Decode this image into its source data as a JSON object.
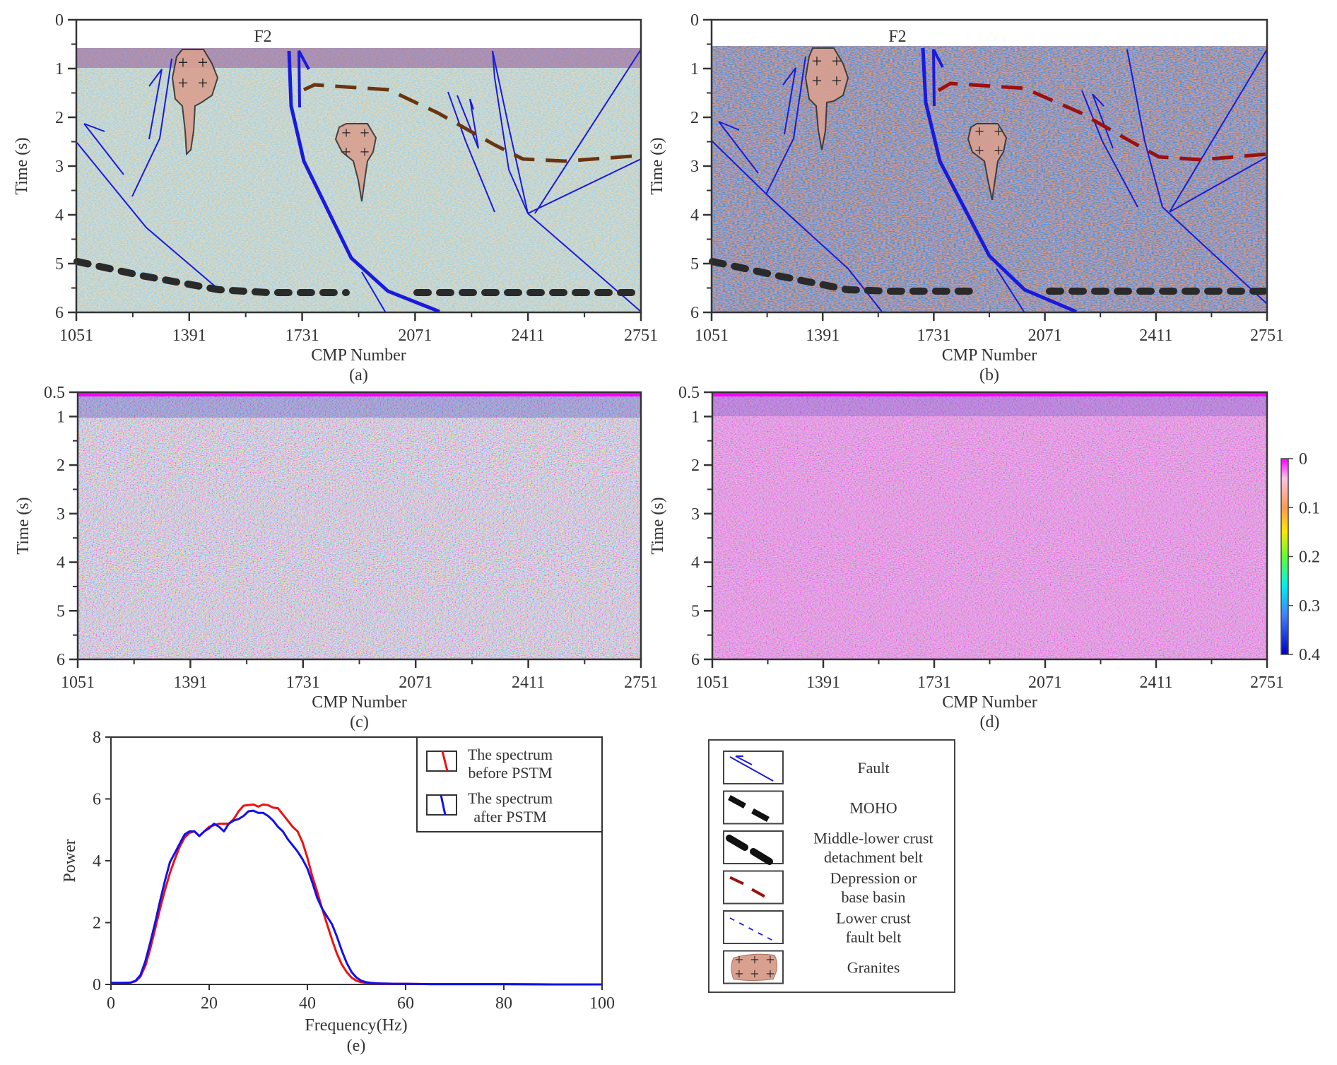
{
  "figure": {
    "panels": [
      {
        "id": "a",
        "caption": "(a)",
        "kind": "seismic-section",
        "variant": "before-PSTM",
        "annotation_label": "F2",
        "xlabel": "CMP Number",
        "ylabel": "Time (s)",
        "xticks": [
          "1051",
          "1391",
          "1731",
          "2071",
          "2411",
          "2751"
        ],
        "yticks": [
          "0",
          "1",
          "2",
          "3",
          "4",
          "5",
          "6"
        ],
        "xlim": [
          1051,
          2751
        ],
        "ylim": [
          0,
          6
        ]
      },
      {
        "id": "b",
        "caption": "(b)",
        "kind": "seismic-section",
        "variant": "after-PSTM",
        "annotation_label": "F2",
        "xlabel": "CMP Number",
        "ylabel": "Time (s)",
        "xticks": [
          "1051",
          "1391",
          "1731",
          "2071",
          "2411",
          "2751"
        ],
        "yticks": [
          "0",
          "1",
          "2",
          "3",
          "4",
          "5",
          "6"
        ],
        "xlim": [
          1051,
          2751
        ],
        "ylim": [
          0,
          6
        ]
      },
      {
        "id": "c",
        "caption": "(c)",
        "kind": "attribute-section",
        "variant": "before-PSTM",
        "xlabel": "CMP Number",
        "ylabel": "Time (s)",
        "xticks": [
          "1051",
          "1391",
          "1731",
          "2071",
          "2411",
          "2751"
        ],
        "yticks": [
          "0.5",
          "1",
          "2",
          "3",
          "4",
          "5",
          "6"
        ],
        "xlim": [
          1051,
          2751
        ],
        "ylim": [
          0.5,
          6
        ]
      },
      {
        "id": "d",
        "caption": "(d)",
        "kind": "attribute-section",
        "variant": "after-PSTM",
        "xlabel": "CMP Number",
        "ylabel": "Time (s)",
        "xticks": [
          "1051",
          "1391",
          "1731",
          "2071",
          "2411",
          "2751"
        ],
        "yticks": [
          "0.5",
          "1",
          "2",
          "3",
          "4",
          "5",
          "6"
        ],
        "xlim": [
          1051,
          2751
        ],
        "ylim": [
          0.5,
          6
        ]
      }
    ],
    "colorbar": {
      "ticks": [
        "0",
        "0.1",
        "0.2",
        "0.3",
        "0.4"
      ],
      "range": [
        0,
        0.4
      ],
      "colors": [
        "#ff00ff",
        "#ffc0e0",
        "#ff9a50",
        "#ffe600",
        "#60ff30",
        "#00f0f0",
        "#4080ff",
        "#0000c0"
      ]
    },
    "interpretation_legend": {
      "items": [
        {
          "symbol": "fault",
          "label_lines": [
            "Fault"
          ],
          "color": "#1a1adc"
        },
        {
          "symbol": "moho",
          "label_lines": [
            "MOHO"
          ],
          "color": "#111111"
        },
        {
          "symbol": "detachment",
          "label_lines": [
            "Middle-lower crust",
            "detachment belt"
          ],
          "color": "#111111"
        },
        {
          "symbol": "depression",
          "label_lines": [
            "Depression or",
            "base basin"
          ],
          "color": "#9b1010"
        },
        {
          "symbol": "lower-crust-fault",
          "label_lines": [
            "Lower crust",
            "fault belt"
          ],
          "color": "#1a1adc"
        },
        {
          "symbol": "granite",
          "label_lines": [
            "Granites"
          ],
          "color": "#d9a090"
        }
      ]
    },
    "colors": {
      "fault": "#1a1adc",
      "moho": "#2a2a2a",
      "basin_a": "#6b3410",
      "basin_b": "#9b1010",
      "granite_fill": "#d9a090",
      "spectrum_before": "#ee1111",
      "spectrum_after": "#1111ee"
    }
  },
  "chart_data": {
    "type": "line",
    "caption": "(e)",
    "title": "",
    "xlabel": "Frequency(Hz)",
    "ylabel": "Power",
    "xlim": [
      0,
      100
    ],
    "ylim": [
      0,
      8
    ],
    "xticks": [
      "0",
      "20",
      "40",
      "60",
      "80",
      "100"
    ],
    "yticks": [
      "0",
      "2",
      "4",
      "6",
      "8"
    ],
    "grid": false,
    "legend_position": "top-right",
    "x": [
      0,
      2,
      4,
      5,
      6,
      7,
      8,
      9,
      10,
      11,
      12,
      13,
      14,
      15,
      16,
      17,
      18,
      19,
      20,
      21,
      22,
      23,
      24,
      25,
      26,
      27,
      28,
      29,
      30,
      31,
      32,
      33,
      34,
      35,
      36,
      37,
      38,
      39,
      40,
      41,
      42,
      43,
      44,
      45,
      46,
      47,
      48,
      49,
      50,
      51,
      52,
      53,
      54,
      55,
      56,
      58,
      60,
      65,
      70,
      80,
      90,
      100
    ],
    "series": [
      {
        "name": "The spectrum before PSTM",
        "legend_lines": [
          "The spectrum",
          "before PSTM"
        ],
        "color": "#ee1111",
        "values": [
          0.05,
          0.05,
          0.06,
          0.1,
          0.25,
          0.6,
          1.15,
          1.8,
          2.45,
          3.05,
          3.6,
          4.05,
          4.45,
          4.75,
          4.9,
          4.95,
          4.8,
          4.95,
          5.1,
          5.15,
          5.2,
          5.2,
          5.2,
          5.35,
          5.6,
          5.78,
          5.8,
          5.82,
          5.75,
          5.82,
          5.8,
          5.72,
          5.7,
          5.5,
          5.3,
          5.1,
          4.95,
          4.6,
          4.1,
          3.5,
          3.0,
          2.45,
          1.95,
          1.45,
          1.0,
          0.65,
          0.4,
          0.22,
          0.12,
          0.07,
          0.05,
          0.04,
          0.03,
          0.03,
          0.02,
          0.02,
          0.02,
          0.01,
          0.01,
          0.01,
          0.0,
          0.0
        ]
      },
      {
        "name": "The spectrum after PSTM",
        "legend_lines": [
          "The spectrum",
          "after PSTM"
        ],
        "color": "#1111ee",
        "values": [
          0.05,
          0.05,
          0.06,
          0.12,
          0.3,
          0.75,
          1.35,
          2.0,
          2.7,
          3.35,
          3.95,
          4.25,
          4.55,
          4.85,
          4.95,
          4.95,
          4.8,
          4.95,
          5.05,
          5.2,
          5.1,
          4.95,
          5.2,
          5.3,
          5.35,
          5.45,
          5.6,
          5.62,
          5.55,
          5.55,
          5.45,
          5.3,
          5.1,
          4.95,
          4.7,
          4.5,
          4.3,
          4.05,
          3.75,
          3.3,
          2.8,
          2.45,
          2.2,
          1.95,
          1.55,
          1.1,
          0.7,
          0.4,
          0.22,
          0.12,
          0.07,
          0.05,
          0.04,
          0.03,
          0.03,
          0.02,
          0.02,
          0.01,
          0.01,
          0.01,
          0.0,
          0.0
        ]
      }
    ]
  }
}
